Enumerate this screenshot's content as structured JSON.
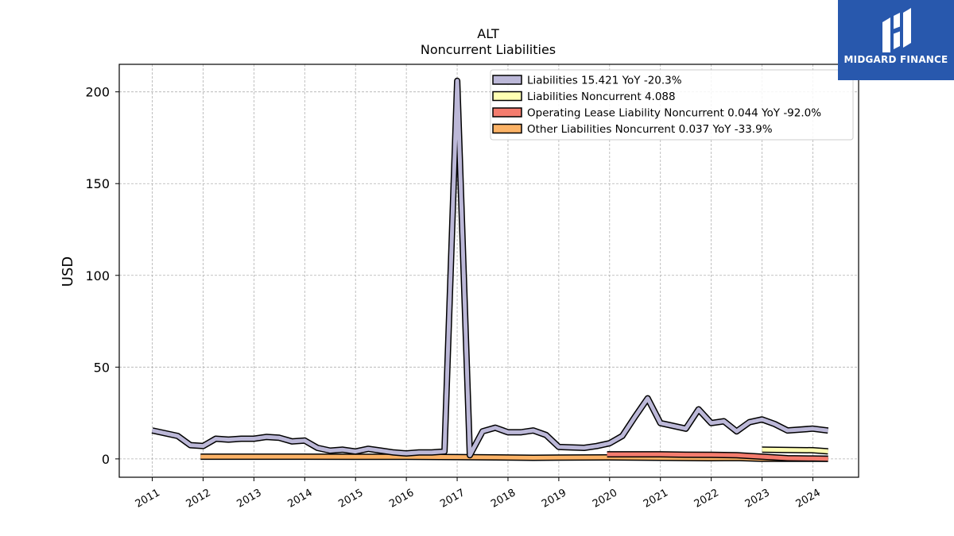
{
  "brand": {
    "name": "MIDGARD FINANCE",
    "accent": "#2858ad"
  },
  "chart_data": {
    "type": "area",
    "title": "ALT",
    "subtitle": "Noncurrent  Liabilities",
    "ylabel": "USD",
    "xlabel": "",
    "ylim": [
      -10,
      215
    ],
    "xlim": [
      2010.35,
      2024.9
    ],
    "y_ticks": [
      0,
      50,
      100,
      150,
      200
    ],
    "x_ticks": [
      "2011",
      "2012",
      "2013",
      "2014",
      "2015",
      "2016",
      "2017",
      "2018",
      "2019",
      "2020",
      "2021",
      "2022",
      "2023",
      "2024"
    ],
    "grid": true,
    "legend_position": "top-right",
    "series": [
      {
        "name": "Liabilities",
        "legend": "Liabilities  15.421 YoY -20.3%",
        "color": "#bcb8d8",
        "x": [
          2011.0,
          2011.5,
          2011.75,
          2012.0,
          2012.25,
          2012.5,
          2012.75,
          2013.0,
          2013.25,
          2013.5,
          2013.75,
          2014.0,
          2014.25,
          2014.5,
          2014.75,
          2015.0,
          2015.25,
          2015.5,
          2015.75,
          2016.0,
          2016.25,
          2016.5,
          2016.75,
          2017.0,
          2017.25,
          2017.5,
          2017.75,
          2018.0,
          2018.25,
          2018.5,
          2018.75,
          2019.0,
          2019.5,
          2019.75,
          2020.0,
          2020.25,
          2020.5,
          2020.75,
          2021.0,
          2021.5,
          2021.75,
          2022.0,
          2022.25,
          2022.5,
          2022.75,
          2023.0,
          2023.25,
          2023.5,
          2024.0,
          2024.3
        ],
        "values": [
          15.5,
          12.5,
          7.5,
          7.0,
          11.0,
          10.5,
          11.0,
          11.0,
          12.0,
          11.5,
          9.5,
          10.0,
          6.0,
          4.5,
          5.0,
          4.0,
          5.5,
          4.5,
          3.5,
          3.0,
          3.5,
          3.5,
          4.0,
          206.0,
          2.0,
          15.0,
          17.0,
          14.5,
          14.5,
          15.5,
          13.0,
          6.5,
          6.0,
          7.0,
          8.5,
          12.5,
          23.0,
          33.0,
          19.5,
          16.5,
          27.0,
          19.5,
          20.5,
          15.0,
          20.0,
          21.5,
          19.0,
          15.5,
          16.5,
          15.421
        ]
      },
      {
        "name": "Liabilities Noncurrent",
        "legend": "Liabilities Noncurrent  4.088",
        "color": "#ffffb3",
        "x": [
          2023.0,
          2024.0,
          2024.3
        ],
        "values": [
          5.0,
          4.7,
          4.088
        ]
      },
      {
        "name": "Operating Lease Liability Noncurrent",
        "legend": "Operating Lease Liability Noncurrent  0.044 YoY -92.0%",
        "color": "#f47c6e",
        "x": [
          2019.95,
          2020.5,
          2021.0,
          2021.5,
          2022.0,
          2022.5,
          2023.0,
          2023.5,
          2024.0,
          2024.3
        ],
        "values": [
          2.5,
          2.5,
          2.5,
          2.3,
          2.2,
          2.0,
          1.2,
          0.4,
          0.2,
          0.044
        ]
      },
      {
        "name": "Other Liabilities Noncurrent",
        "legend": "Other Liabilities Noncurrent  0.037 YoY -33.9%",
        "color": "#fbb266",
        "x": [
          2011.95,
          2013.0,
          2014.0,
          2015.0,
          2016.0,
          2017.0,
          2017.75,
          2018.5,
          2019.0,
          2020.0,
          2021.0,
          2022.0,
          2022.5,
          2023.0,
          2023.5,
          2024.0,
          2024.3
        ],
        "values": [
          1.2,
          1.2,
          1.2,
          1.1,
          1.1,
          1.0,
          0.8,
          0.6,
          0.7,
          0.8,
          0.6,
          0.4,
          0.5,
          0.1,
          0.1,
          0.05,
          0.037
        ]
      }
    ]
  }
}
